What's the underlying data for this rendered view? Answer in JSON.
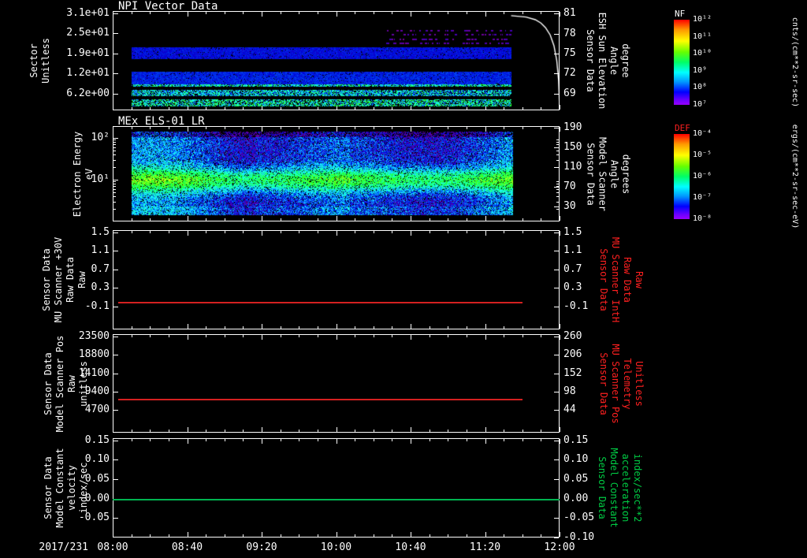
{
  "colors": {
    "background": "#000000",
    "foreground": "#ffffff",
    "red": "#ff2020",
    "green": "#00cc44"
  },
  "x_axis": {
    "date_label": "2017/231",
    "tick_labels": [
      "08:00",
      "08:40",
      "09:20",
      "10:00",
      "10:40",
      "11:20",
      "12:00"
    ],
    "minor_tick_minutes": 10,
    "range_minutes": [
      0,
      240
    ]
  },
  "colorbars": [
    {
      "name": "NF",
      "name_color": "#ffffff",
      "tick_labels": [
        "10¹²",
        "10¹¹",
        "10¹⁰",
        "10⁹",
        "10⁸",
        "10⁷"
      ],
      "unit_label": "cnts/(cm**2-sr-sec)"
    },
    {
      "name": "DEF",
      "name_color": "#ff2020",
      "tick_labels": [
        "10⁻⁴",
        "10⁻⁵",
        "10⁻⁶",
        "10⁻⁷",
        "10⁻⁸"
      ],
      "unit_label": "ergs/(cm**2-sr-sec-eV)"
    }
  ],
  "chart_data": [
    {
      "type": "heatmap",
      "title": "NPI Vector Data",
      "left_axis": {
        "label_lines": [
          "Sector",
          "Unitless"
        ],
        "scale": "linear",
        "ylim": [
          1.08,
          31.73
        ],
        "ticks": [
          {
            "value": 31.0,
            "label": "3.1e+01"
          },
          {
            "value": 24.8,
            "label": "2.5e+01"
          },
          {
            "value": 18.6,
            "label": "1.9e+01"
          },
          {
            "value": 12.4,
            "label": "1.2e+01"
          },
          {
            "value": 6.2,
            "label": "6.2e+00"
          }
        ]
      },
      "right_axis": {
        "label_lines": [
          "Sensor Data",
          "ESH Sun Elevation",
          "Angle",
          "degree"
        ],
        "color": "#ffffff",
        "scale": "linear",
        "ylim": [
          66.5,
          81.4
        ],
        "ticks": [
          {
            "value": 81,
            "label": "81"
          },
          {
            "value": 78,
            "label": "78"
          },
          {
            "value": 75,
            "label": "75"
          },
          {
            "value": 72,
            "label": "72"
          },
          {
            "value": 69,
            "label": "69"
          }
        ]
      },
      "heatmap": {
        "colorbar": "NF",
        "time_extent_minutes": [
          10,
          214
        ],
        "bands": [
          {
            "sector_range": [
              16.9,
              20.5
            ],
            "level": 0.21,
            "black_fraction": 0.06,
            "speckle": false
          },
          {
            "sector_range": [
              8.9,
              12.9
            ],
            "level": 0.23,
            "black_fraction": 0.05,
            "speckle": false
          },
          {
            "sector_range": [
              8.4,
              9.2
            ],
            "level": 0.36,
            "black_fraction": 0.2,
            "speckle": true
          },
          {
            "sector_range": [
              5.4,
              7.4
            ],
            "level": 0.33,
            "black_fraction": 0.25,
            "speckle": true
          },
          {
            "sector_range": [
              2.4,
              4.4
            ],
            "level": 0.38,
            "black_fraction": 0.3,
            "speckle": true
          }
        ],
        "scatter": {
          "sector_range": [
            22,
            26
          ],
          "time_extent_minutes": [
            147,
            214
          ],
          "level_range": [
            0.05,
            0.14
          ],
          "count": 140
        }
      },
      "overlay_curve": {
        "name": "sun-elevation-angle",
        "color": "#ffffff",
        "axis": "right",
        "points": [
          [
            214,
            80.7
          ],
          [
            222,
            80.5
          ],
          [
            227,
            80.1
          ],
          [
            230,
            79.6
          ],
          [
            232.5,
            78.9
          ],
          [
            235,
            77.8
          ],
          [
            237,
            76.2
          ],
          [
            238.5,
            74.0
          ],
          [
            239.5,
            71.0
          ],
          [
            240,
            66.8
          ]
        ]
      }
    },
    {
      "type": "heatmap",
      "title": "MEx ELS-01 LR",
      "left_axis": {
        "label_lines": [
          "Electron Energy",
          "eV"
        ],
        "scale": "log",
        "ylim": [
          1,
          192
        ],
        "ticks": [
          {
            "value": 100,
            "label": "10²"
          },
          {
            "value": 10,
            "label": "10¹"
          }
        ]
      },
      "right_axis": {
        "label_lines": [
          "Sensor Data",
          "Model Scanner",
          "Angle",
          "degrees"
        ],
        "color": "#ffffff",
        "scale": "linear",
        "ylim": [
          -0.5,
          193.2
        ],
        "ticks": [
          {
            "value": 190,
            "label": "190"
          },
          {
            "value": 150,
            "label": "150"
          },
          {
            "value": 110,
            "label": "110"
          },
          {
            "value": 70,
            "label": "70"
          },
          {
            "value": 30,
            "label": "30"
          }
        ]
      },
      "heatmap": {
        "colorbar": "DEF",
        "time_extent_minutes": [
          10,
          215
        ],
        "energy_extent_eV": [
          1.2,
          160
        ],
        "background_level": 0.24,
        "enhanced_band": {
          "center_eV": 10,
          "sigma_decades": 0.2,
          "boost": 0.34
        },
        "black_fraction": 0.12
      }
    },
    {
      "type": "line",
      "title": "",
      "left_axis": {
        "label_lines": [
          "Sensor Data",
          "MU Scanner +30V",
          "Raw Data",
          "Raw"
        ],
        "scale": "linear",
        "ylim": [
          -0.594,
          1.551
        ],
        "ticks": [
          {
            "value": 1.5,
            "label": "1.5"
          },
          {
            "value": 1.1,
            "label": "1.1"
          },
          {
            "value": 0.7,
            "label": "0.7"
          },
          {
            "value": 0.3,
            "label": "0.3"
          },
          {
            "value": -0.1,
            "label": "-0.1"
          }
        ]
      },
      "right_axis": {
        "label_lines": [
          "Sensor Data",
          "MU Scanner IntH",
          "Raw Data",
          "Raw"
        ],
        "color": "#ff2020",
        "scale": "linear",
        "ylim": [
          -0.594,
          1.551
        ],
        "ticks": [
          {
            "value": 1.5,
            "label": "1.5"
          },
          {
            "value": 1.1,
            "label": "1.1"
          },
          {
            "value": 0.7,
            "label": "0.7"
          },
          {
            "value": 0.3,
            "label": "0.3"
          },
          {
            "value": -0.1,
            "label": "-0.1"
          }
        ]
      },
      "series": [
        {
          "name": "mu-scanner-raw",
          "color": "#d42020",
          "constant_value": 0.0,
          "time_extent_minutes": [
            3,
            220
          ]
        }
      ]
    },
    {
      "type": "line",
      "title": "",
      "left_axis": {
        "label_lines": [
          "Sensor Data",
          "Model Scanner Pos",
          "Raw",
          "unitless"
        ],
        "scale": "linear",
        "ylim": [
          -1100,
          24100
        ],
        "ticks": [
          {
            "value": 23500,
            "label": "23500"
          },
          {
            "value": 18800,
            "label": "18800"
          },
          {
            "value": 14100,
            "label": "14100"
          },
          {
            "value": 9400,
            "label": "9400"
          },
          {
            "value": 4700,
            "label": "4700"
          }
        ]
      },
      "right_axis": {
        "label_lines": [
          "Sensor Data",
          "MU Scanner Pos",
          "Telemetry",
          "Unitless"
        ],
        "color": "#ff2020",
        "scale": "linear",
        "ylim": [
          -22.6,
          266.9
        ],
        "ticks": [
          {
            "value": 260,
            "label": "260"
          },
          {
            "value": 206,
            "label": "206"
          },
          {
            "value": 152,
            "label": "152"
          },
          {
            "value": 98,
            "label": "98"
          },
          {
            "value": 44,
            "label": "44"
          }
        ]
      },
      "series": [
        {
          "name": "model-scanner-pos",
          "color": "#d42020",
          "constant_value": 7500,
          "time_extent_minutes": [
            3,
            220
          ]
        }
      ]
    },
    {
      "type": "line",
      "title": "",
      "left_axis": {
        "label_lines": [
          "Sensor Data",
          "Model Constant",
          "velocity",
          "index/sec"
        ],
        "scale": "linear",
        "ylim": [
          -0.101,
          0.1561
        ],
        "ticks": [
          {
            "value": 0.15,
            "label": "0.15"
          },
          {
            "value": 0.1,
            "label": "0.10"
          },
          {
            "value": 0.05,
            "label": "0.05"
          },
          {
            "value": 0.0,
            "label": "0.00"
          },
          {
            "value": -0.05,
            "label": "-0.05"
          }
        ]
      },
      "right_axis": {
        "label_lines": [
          "Sensor Data",
          "Model Constant",
          "acceleration",
          "index/sec**2"
        ],
        "color": "#00cc44",
        "scale": "linear",
        "ylim": [
          -0.101,
          0.1561
        ],
        "ticks": [
          {
            "value": 0.15,
            "label": "0.15"
          },
          {
            "value": 0.1,
            "label": "0.10"
          },
          {
            "value": 0.05,
            "label": "0.05"
          },
          {
            "value": 0.0,
            "label": "0.00"
          },
          {
            "value": -0.05,
            "label": "-0.05"
          },
          {
            "value": -0.1,
            "label": "-0.10"
          }
        ]
      },
      "series": [
        {
          "name": "model-constant-velocity",
          "color": "#00b450",
          "constant_value": 0.0,
          "time_extent_minutes": [
            0,
            240
          ]
        }
      ]
    }
  ]
}
